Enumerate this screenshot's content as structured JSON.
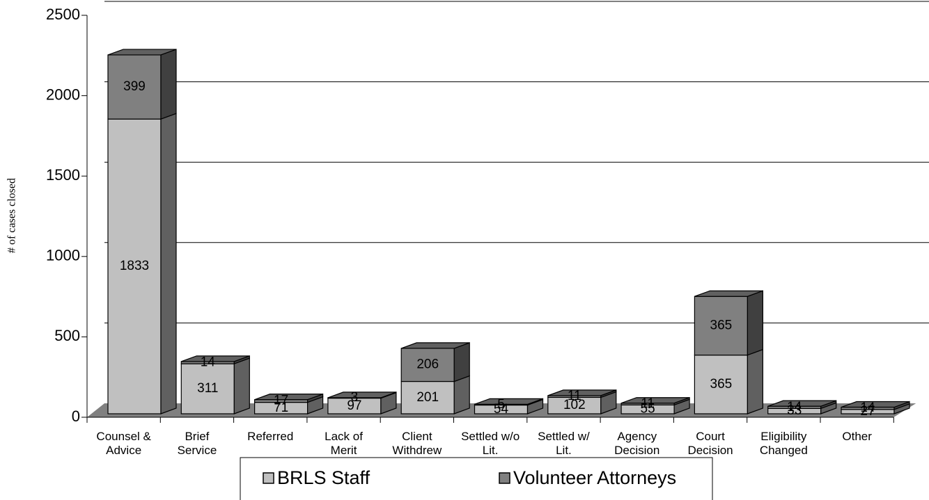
{
  "chart_data": {
    "type": "bar3d_stacked",
    "ylabel": "# of cases closed",
    "categories": [
      "Counsel &\nAdvice",
      "Brief\nService",
      "Referred",
      "Lack of\nMerit",
      "Client\nWithdrew",
      "Settled w/o\nLit.",
      "Settled w/\nLit.",
      "Agency\nDecision",
      "Court\nDecision",
      "Eligibility\nChanged",
      "Other"
    ],
    "series": [
      {
        "name": "BRLS Staff",
        "color": "#c0c0c0",
        "values": [
          1833,
          311,
          71,
          97,
          201,
          54,
          102,
          55,
          365,
          33,
          27
        ]
      },
      {
        "name": "Volunteer Attorneys",
        "color": "#808080",
        "values": [
          399,
          14,
          17,
          3,
          206,
          5,
          11,
          11,
          365,
          14,
          14
        ]
      }
    ],
    "ylim": [
      0,
      2500
    ],
    "yticks": [
      0,
      500,
      1000,
      1500,
      2000,
      2500
    ],
    "grid": true,
    "legend": "bottom"
  }
}
